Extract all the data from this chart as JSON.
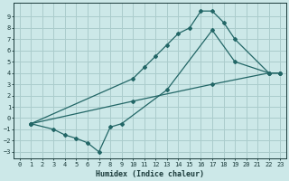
{
  "xlabel": "Humidex (Indice chaleur)",
  "bg_color": "#cce8e8",
  "grid_color": "#aacccc",
  "line_color": "#226666",
  "xlim": [
    -0.5,
    23.5
  ],
  "ylim": [
    -3.6,
    10.2
  ],
  "xticks": [
    0,
    1,
    2,
    3,
    4,
    5,
    6,
    7,
    8,
    9,
    10,
    11,
    12,
    13,
    14,
    15,
    16,
    17,
    18,
    19,
    20,
    21,
    22,
    23
  ],
  "yticks": [
    -3,
    -2,
    -1,
    0,
    1,
    2,
    3,
    4,
    5,
    6,
    7,
    8,
    9
  ],
  "line1_x": [
    1,
    10,
    11,
    12,
    13,
    14,
    15,
    16,
    17,
    18,
    19,
    22,
    23
  ],
  "line1_y": [
    -0.5,
    3.5,
    4.5,
    5.5,
    6.5,
    7.5,
    8.0,
    9.5,
    9.5,
    8.5,
    7.0,
    4.0,
    4.0
  ],
  "line2_x": [
    1,
    3,
    4,
    5,
    6,
    7,
    8,
    9,
    13,
    17,
    19,
    22,
    23
  ],
  "line2_y": [
    -0.5,
    -1.0,
    -1.5,
    -1.8,
    -2.2,
    -3.0,
    -0.8,
    -0.5,
    2.5,
    7.8,
    5.0,
    4.0,
    4.0
  ],
  "line3_x": [
    1,
    10,
    17,
    22,
    23
  ],
  "line3_y": [
    -0.5,
    1.5,
    3.0,
    4.0,
    4.0
  ]
}
